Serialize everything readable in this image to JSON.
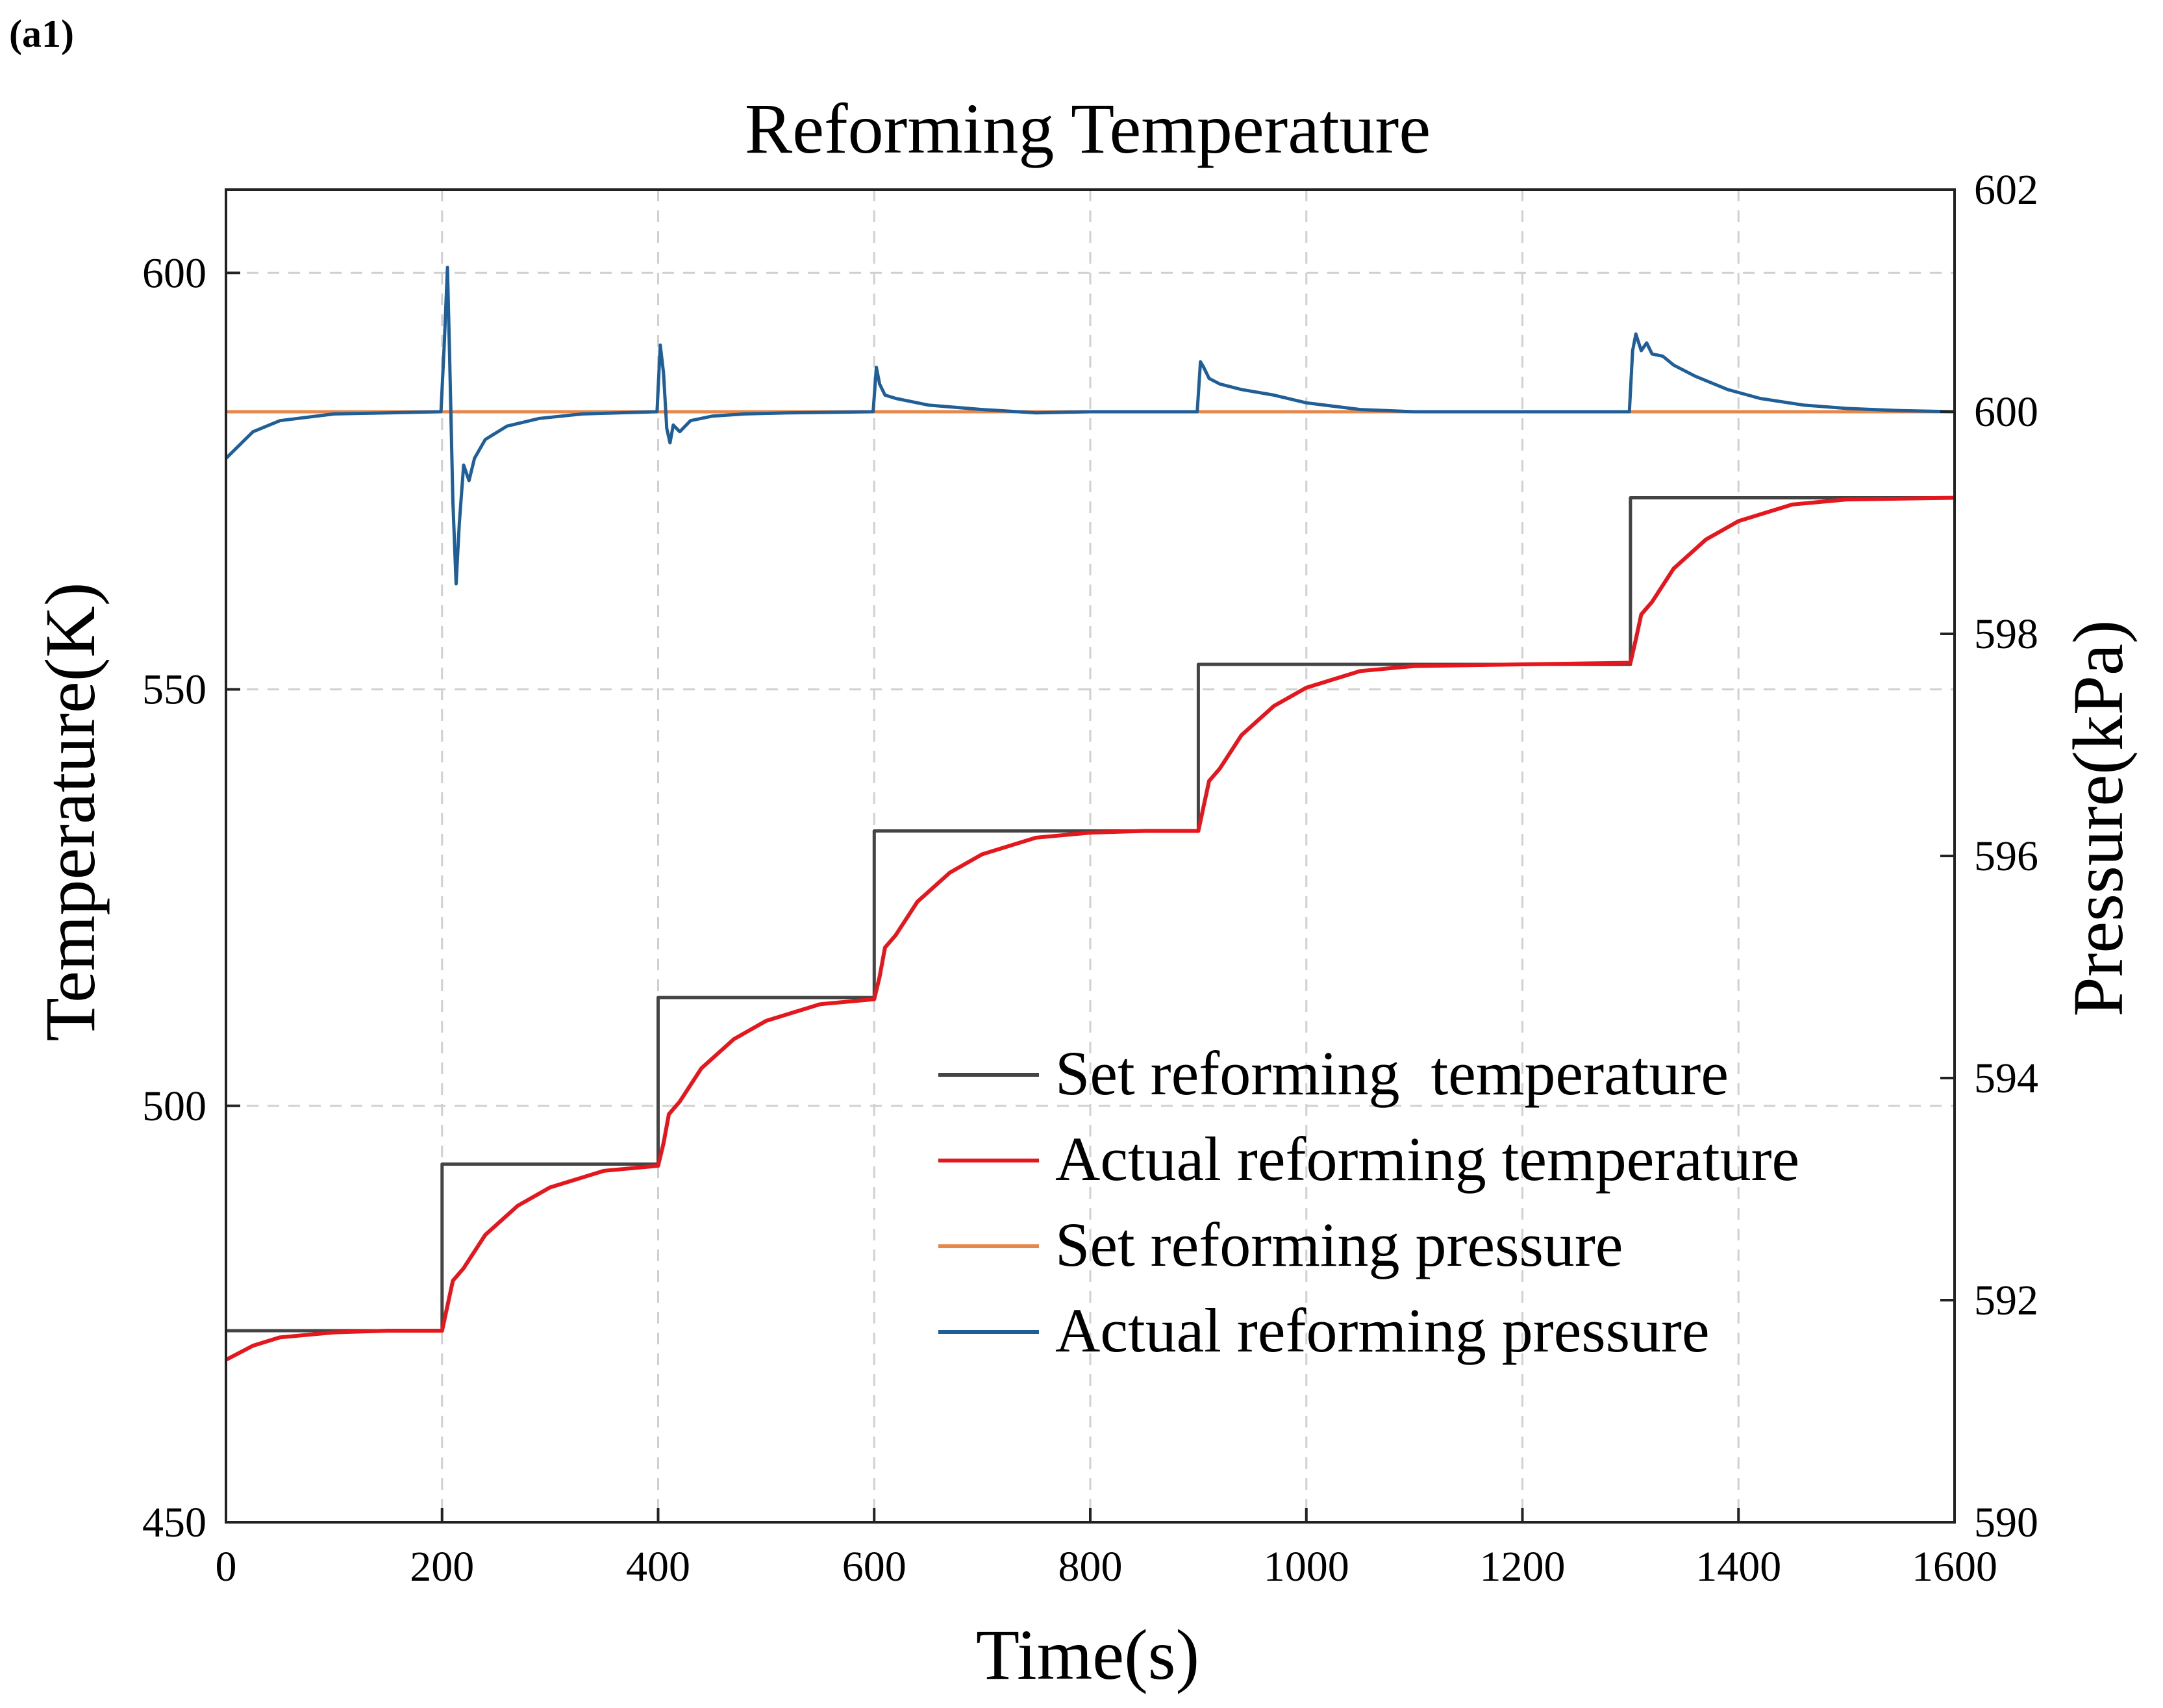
{
  "panel_label": "(a1)",
  "colors": {
    "set_temperature": "#444444",
    "actual_temperature": "#e3171d",
    "set_pressure": "#e8874a",
    "actual_pressure": "#1f5e96",
    "grid": "#d0d0d0",
    "axis": "#222222"
  },
  "chart_data": {
    "type": "line",
    "title": "Reforming Temperature",
    "xlabel": "Time(s)",
    "ylabel": "Temperature(K)",
    "y2label": "Pressure(kPa)",
    "xlim": [
      0,
      1600
    ],
    "ylim": [
      450,
      610
    ],
    "y2lim": [
      590,
      602
    ],
    "xticks": [
      "0",
      "200",
      "400",
      "600",
      "800",
      "1000",
      "1200",
      "1400",
      "1600"
    ],
    "yticks": [
      "450",
      "500",
      "550",
      "600"
    ],
    "y2ticks": [
      "590",
      "592",
      "594",
      "596",
      "598",
      "600",
      "602"
    ],
    "grid": true,
    "legend_position": "lower-right",
    "legend": [
      "Set reforming  temperature",
      "Actual reforming temperature",
      "Set reforming pressure",
      "Actual reforming pressure"
    ],
    "series": [
      {
        "name": "Set reforming  temperature",
        "axis": "left",
        "x": [
          0,
          200,
          200,
          400,
          400,
          600,
          600,
          900,
          900,
          1300,
          1300,
          1600
        ],
        "y": [
          473,
          473,
          493,
          493,
          513,
          513,
          533,
          533,
          553,
          553,
          573,
          573
        ]
      },
      {
        "name": "Actual reforming temperature",
        "axis": "left",
        "x": [
          0,
          25,
          50,
          100,
          150,
          200,
          205,
          210,
          220,
          240,
          270,
          300,
          350,
          400,
          405,
          410,
          420,
          440,
          470,
          500,
          550,
          600,
          605,
          610,
          620,
          640,
          670,
          700,
          750,
          800,
          850,
          900,
          905,
          910,
          920,
          940,
          970,
          1000,
          1050,
          1100,
          1200,
          1300,
          1305,
          1310,
          1320,
          1340,
          1370,
          1400,
          1450,
          1500,
          1600
        ],
        "y": [
          469.5,
          471.2,
          472.2,
          472.8,
          473,
          473,
          476,
          479,
          480.5,
          484.5,
          488,
          490.2,
          492.2,
          492.8,
          495.5,
          499,
          500.5,
          504.5,
          508,
          510.2,
          512.2,
          512.8,
          515.5,
          519,
          520.5,
          524.5,
          528,
          530.2,
          532.2,
          532.8,
          533,
          533,
          536,
          539,
          540.5,
          544.5,
          548,
          550.2,
          552.2,
          552.8,
          553,
          553.2,
          556,
          559,
          560.5,
          564.5,
          568,
          570.2,
          572.2,
          572.8,
          573
        ]
      },
      {
        "name": "Set reforming pressure",
        "axis": "right",
        "x": [
          0,
          1600
        ],
        "y": [
          600,
          600
        ]
      },
      {
        "name": "Actual reforming pressure",
        "axis": "right",
        "x": [
          0,
          25,
          50,
          100,
          150,
          199,
          202,
          205,
          207,
          210,
          213,
          216,
          220,
          225,
          230,
          240,
          260,
          290,
          330,
          399,
          402,
          405,
          408,
          411,
          414,
          420,
          430,
          450,
          480,
          520,
          599,
          602,
          605,
          610,
          620,
          650,
          700,
          750,
          800,
          899,
          902,
          905,
          910,
          920,
          940,
          970,
          1000,
          1050,
          1100,
          1200,
          1299,
          1302,
          1305,
          1310,
          1315,
          1320,
          1330,
          1340,
          1360,
          1390,
          1420,
          1460,
          1500,
          1550,
          1600
        ],
        "y": [
          599.58,
          599.82,
          599.92,
          599.98,
          599.99,
          600.0,
          600.6,
          601.3,
          600.5,
          599.2,
          598.45,
          599.0,
          599.52,
          599.38,
          599.58,
          599.75,
          599.87,
          599.94,
          599.98,
          600.0,
          600.6,
          600.35,
          599.85,
          599.72,
          599.88,
          599.82,
          599.92,
          599.96,
          599.98,
          599.99,
          600.0,
          600.4,
          600.25,
          600.15,
          600.12,
          600.06,
          600.02,
          599.99,
          600.0,
          600.0,
          600.45,
          600.4,
          600.3,
          600.25,
          600.2,
          600.15,
          600.08,
          600.02,
          600.0,
          600.0,
          600.0,
          600.55,
          600.7,
          600.55,
          600.62,
          600.52,
          600.5,
          600.42,
          600.32,
          600.2,
          600.12,
          600.06,
          600.03,
          600.01,
          600.0
        ]
      }
    ]
  }
}
